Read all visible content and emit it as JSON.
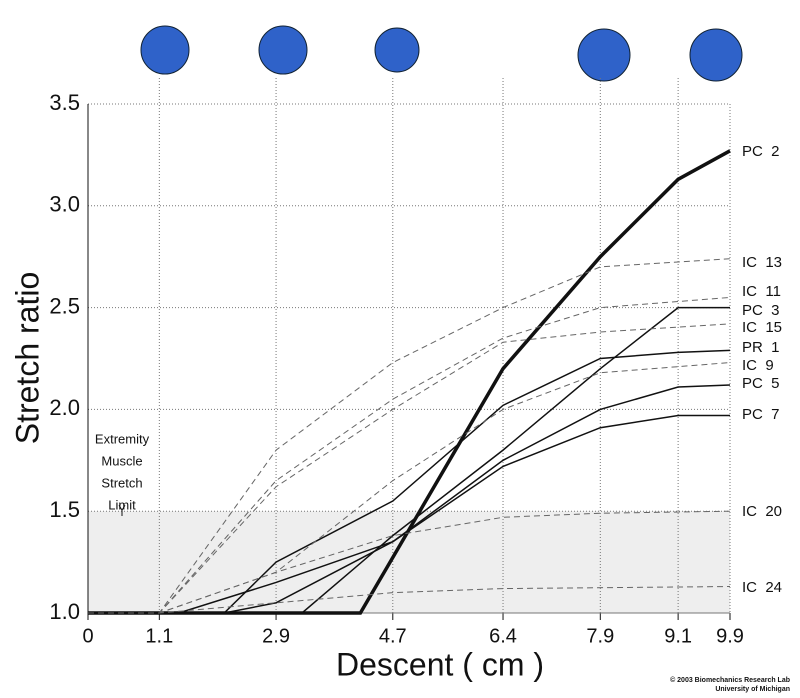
{
  "chart_data": {
    "type": "line",
    "xlabel": "Descent ( cm )",
    "ylabel": "Stretch ratio",
    "xlim": [
      0,
      9.9
    ],
    "ylim": [
      1.0,
      3.5
    ],
    "xticks": [
      0,
      1.1,
      2.9,
      4.7,
      6.4,
      7.9,
      9.1,
      9.9
    ],
    "yticks": [
      {
        "value": 1.0,
        "label": "1.0"
      },
      1.5,
      {
        "value": 2.0,
        "label": "2.0"
      },
      2.5,
      {
        "value": 3.0,
        "label": "3.0"
      },
      3.5
    ],
    "grid": true,
    "shade_below": 1.5,
    "annotation": [
      "Extremity",
      "Muscle",
      "Stretch",
      "Limit"
    ],
    "credit": [
      "© 2003 Biomechanics Research Lab",
      "University of Michigan"
    ],
    "series": [
      {
        "name": "PC  2",
        "color": "#111111",
        "line_style": "bold",
        "x": [
          0,
          4.2,
          6.4,
          7.9,
          9.1,
          9.9
        ],
        "values": [
          1.0,
          1.0,
          2.2,
          2.75,
          3.13,
          3.27
        ]
      },
      {
        "name": "IC  13",
        "color": "#666666",
        "line_style": "dashed",
        "x": [
          0,
          1.1,
          2.9,
          4.7,
          6.4,
          7.9,
          9.9
        ],
        "values": [
          1.0,
          1.0,
          1.8,
          2.23,
          2.5,
          2.7,
          2.74
        ]
      },
      {
        "name": "IC  11",
        "color": "#666666",
        "line_style": "dashed",
        "x": [
          0,
          1.1,
          2.9,
          4.7,
          6.4,
          7.9,
          9.9
        ],
        "values": [
          1.0,
          1.0,
          1.65,
          2.05,
          2.35,
          2.5,
          2.55
        ]
      },
      {
        "name": "PC  3",
        "color": "#111111",
        "line_style": "solid",
        "x": [
          0,
          3.3,
          4.7,
          6.4,
          7.9,
          9.1,
          9.9
        ],
        "values": [
          1.0,
          1.0,
          1.38,
          1.8,
          2.2,
          2.5,
          2.5
        ]
      },
      {
        "name": "IC  15",
        "color": "#666666",
        "line_style": "dashed",
        "x": [
          0,
          1.1,
          2.9,
          4.7,
          6.4,
          7.9,
          9.9
        ],
        "values": [
          1.0,
          1.0,
          1.62,
          2.0,
          2.33,
          2.38,
          2.42
        ]
      },
      {
        "name": "PR  1",
        "color": "#111111",
        "line_style": "solid",
        "x": [
          0,
          2.1,
          2.9,
          4.7,
          6.4,
          7.9,
          9.1,
          9.9
        ],
        "values": [
          1.0,
          1.0,
          1.25,
          1.55,
          2.02,
          2.25,
          2.28,
          2.29
        ]
      },
      {
        "name": "IC  9",
        "color": "#666666",
        "line_style": "dashed",
        "x": [
          0,
          1.1,
          2.9,
          4.7,
          6.4,
          7.9,
          9.9
        ],
        "values": [
          1.0,
          1.0,
          1.2,
          1.65,
          2.0,
          2.18,
          2.23
        ]
      },
      {
        "name": "PC  5",
        "color": "#111111",
        "line_style": "solid",
        "x": [
          0,
          1.4,
          2.9,
          4.7,
          6.4,
          7.9,
          9.1,
          9.9
        ],
        "values": [
          1.0,
          1.0,
          1.15,
          1.35,
          1.75,
          2.0,
          2.11,
          2.12
        ]
      },
      {
        "name": "PC  7",
        "color": "#111111",
        "line_style": "solid",
        "x": [
          0,
          2.1,
          2.9,
          4.7,
          6.4,
          7.9,
          9.1,
          9.9
        ],
        "values": [
          1.0,
          1.0,
          1.05,
          1.35,
          1.72,
          1.91,
          1.97,
          1.97
        ]
      },
      {
        "name": "IC  20",
        "color": "#666666",
        "line_style": "dashed",
        "x": [
          0,
          1.1,
          2.9,
          4.7,
          6.4,
          7.9,
          9.9
        ],
        "values": [
          1.0,
          1.0,
          1.2,
          1.38,
          1.47,
          1.49,
          1.5
        ]
      },
      {
        "name": "IC  24",
        "color": "#666666",
        "line_style": "dashed",
        "x": [
          0,
          1.1,
          4.7,
          6.4,
          9.9
        ],
        "values": [
          1.0,
          1.0,
          1.1,
          1.12,
          1.13
        ]
      }
    ]
  }
}
